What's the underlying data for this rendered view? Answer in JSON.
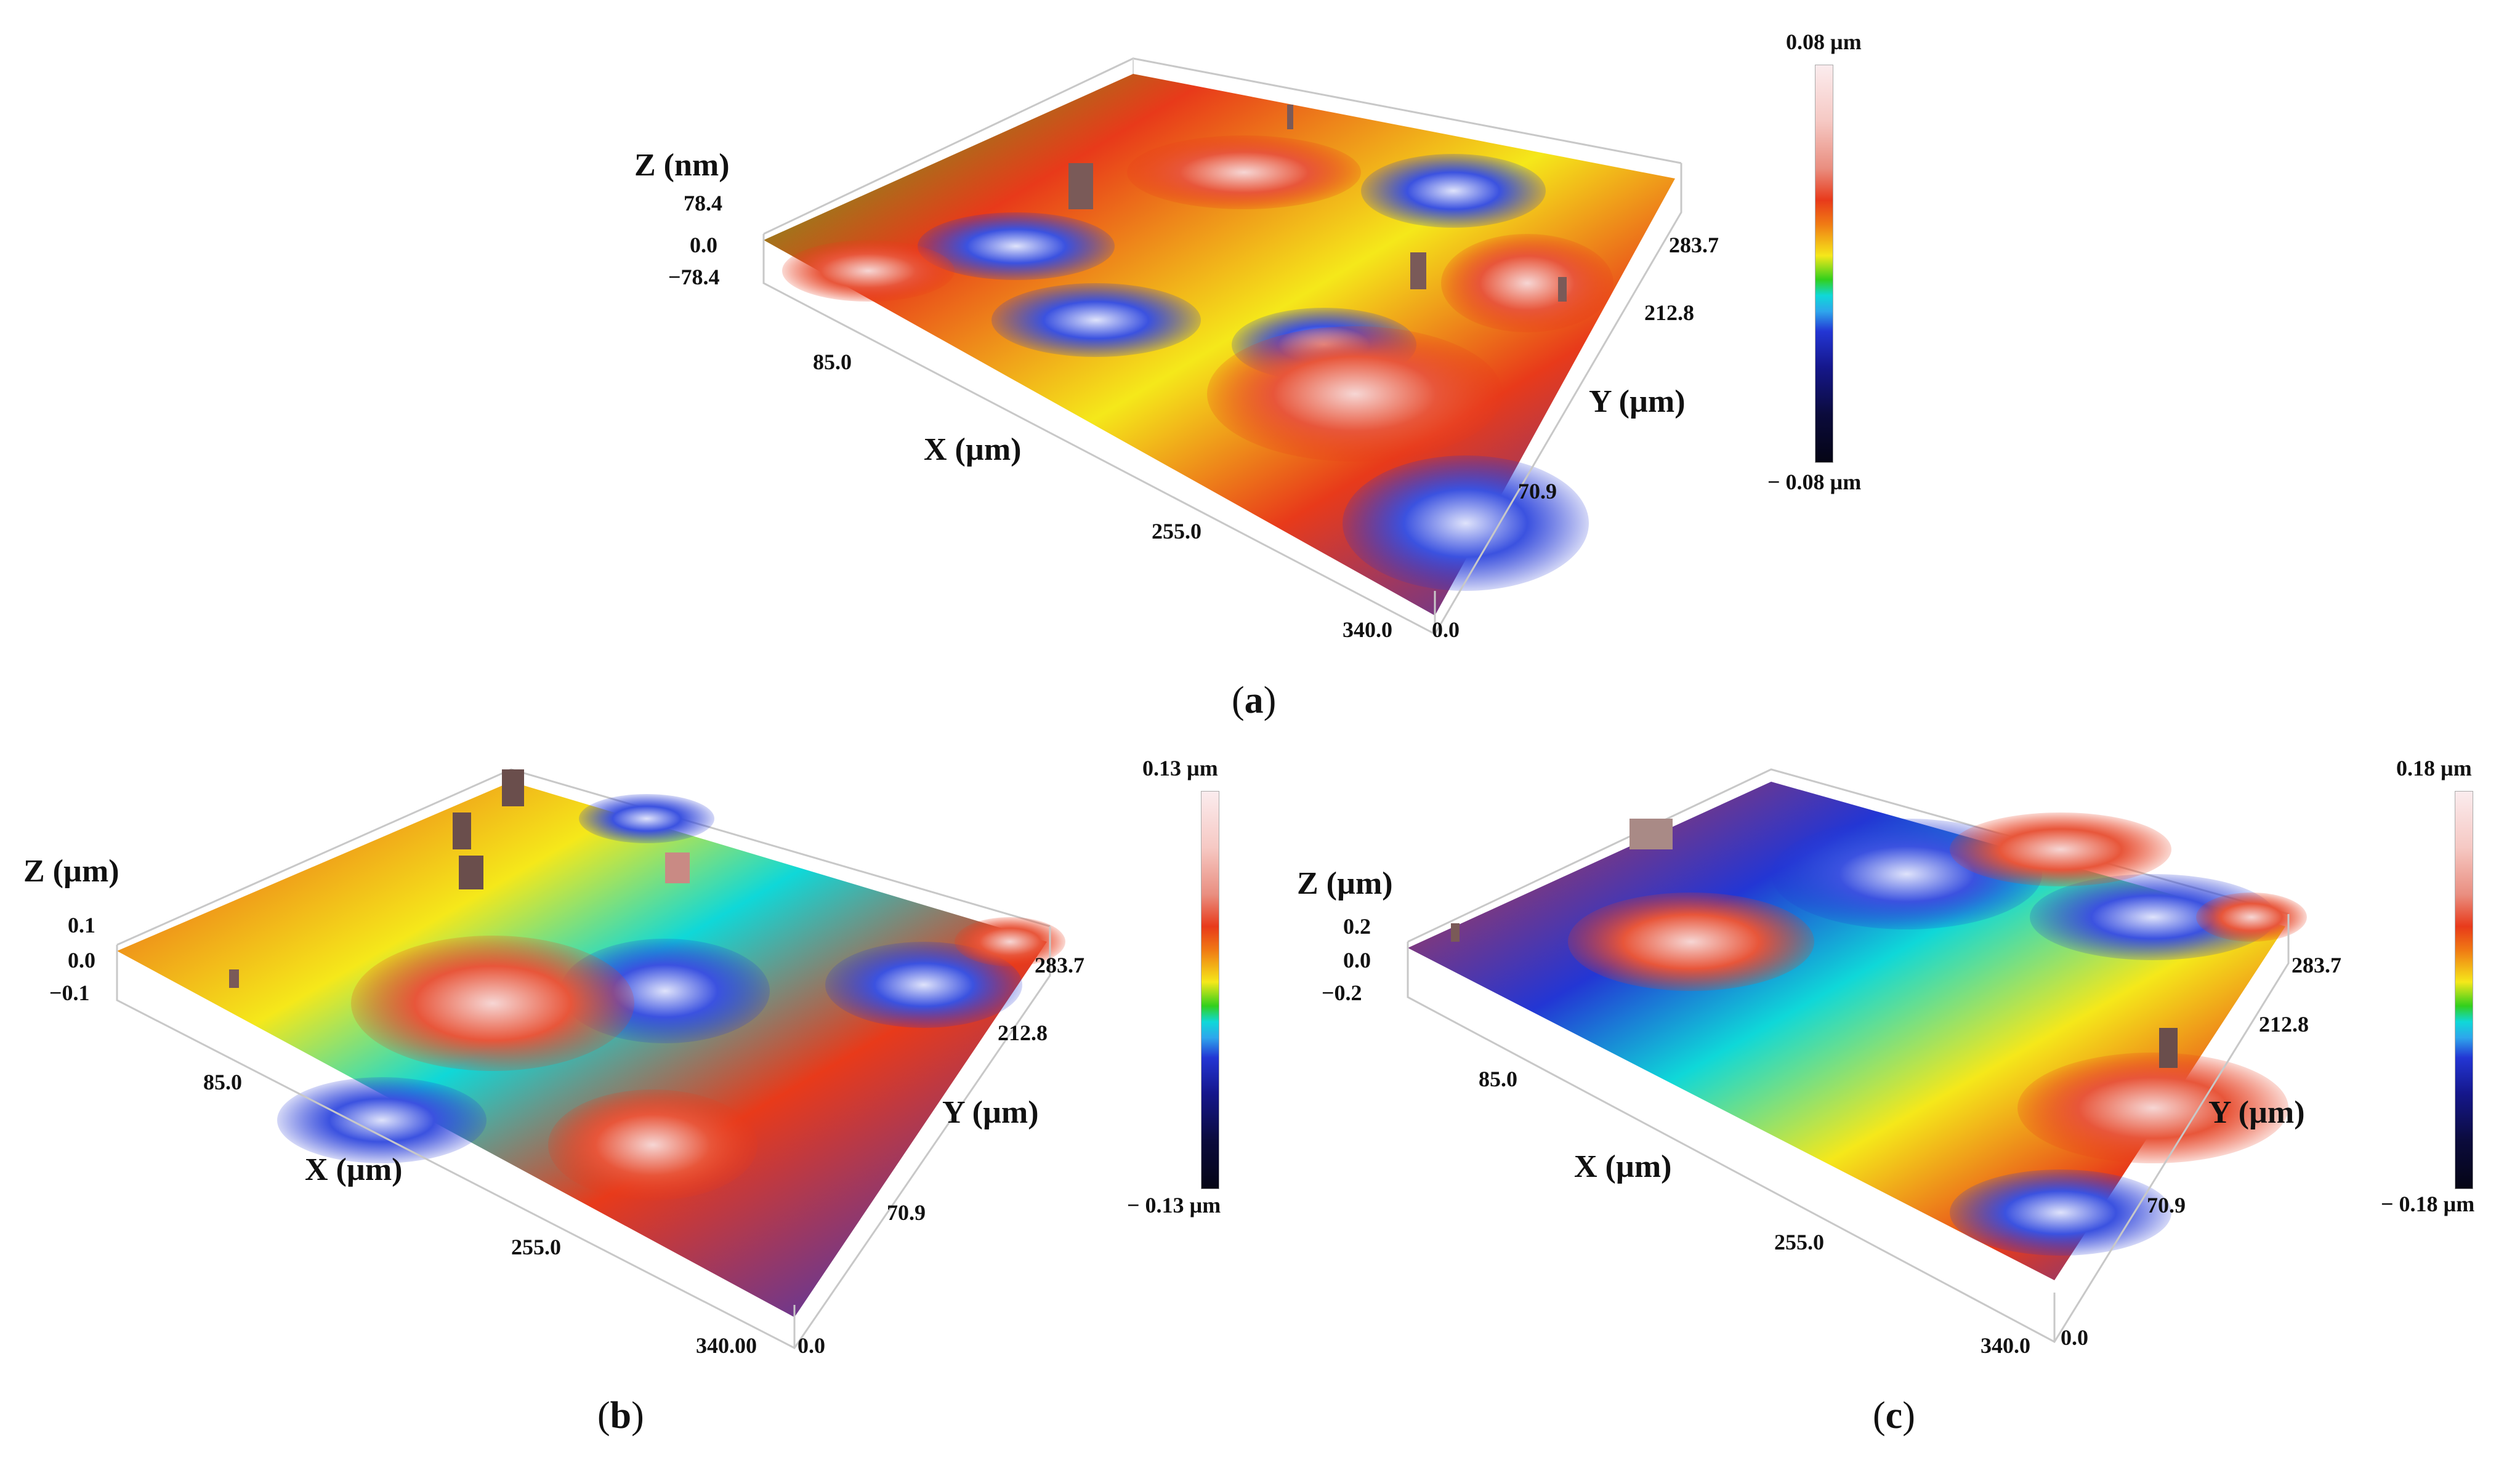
{
  "panels": {
    "a": {
      "caption": "a",
      "z_title": "Z (nm)",
      "x_title": "X (µm)",
      "y_title": "Y (µm)",
      "z_ticks": [
        "78.4",
        "0.0",
        "−78.4"
      ],
      "x_ticks": [
        "85.0",
        "255.0",
        "340.0"
      ],
      "y_ticks": [
        "283.7",
        "212.8",
        "70.9",
        "0.0"
      ],
      "colorbar": {
        "max": "0.08 µm",
        "min": "− 0.08 µm"
      }
    },
    "b": {
      "caption": "b",
      "z_title": "Z (µm)",
      "x_title": "X (µm)",
      "y_title": "Y (µm)",
      "z_ticks": [
        "0.1",
        "0.0",
        "−0.1"
      ],
      "x_ticks": [
        "85.0",
        "255.0",
        "340.00"
      ],
      "y_ticks": [
        "283.7",
        "212.8",
        "70.9",
        "0.0"
      ],
      "colorbar": {
        "max": "0.13 µm",
        "min": "− 0.13 µm"
      }
    },
    "c": {
      "caption": "c",
      "z_title": "Z (µm)",
      "x_title": "X (µm)",
      "y_title": "Y (µm)",
      "z_ticks": [
        "0.2",
        "0.0",
        "−0.2"
      ],
      "x_ticks": [
        "85.0",
        "255.0",
        "340.0"
      ],
      "y_ticks": [
        "283.7",
        "212.8",
        "70.9",
        "0.0"
      ],
      "colorbar": {
        "max": "0.18 µm",
        "min": "− 0.18 µm"
      }
    }
  },
  "colors": {
    "high": "#fbecee",
    "red": "#e83a1a",
    "yellow": "#f5e81a",
    "green": "#32d01c",
    "cyan": "#0fd8d8",
    "blue": "#2336d4",
    "low": "#050515"
  }
}
